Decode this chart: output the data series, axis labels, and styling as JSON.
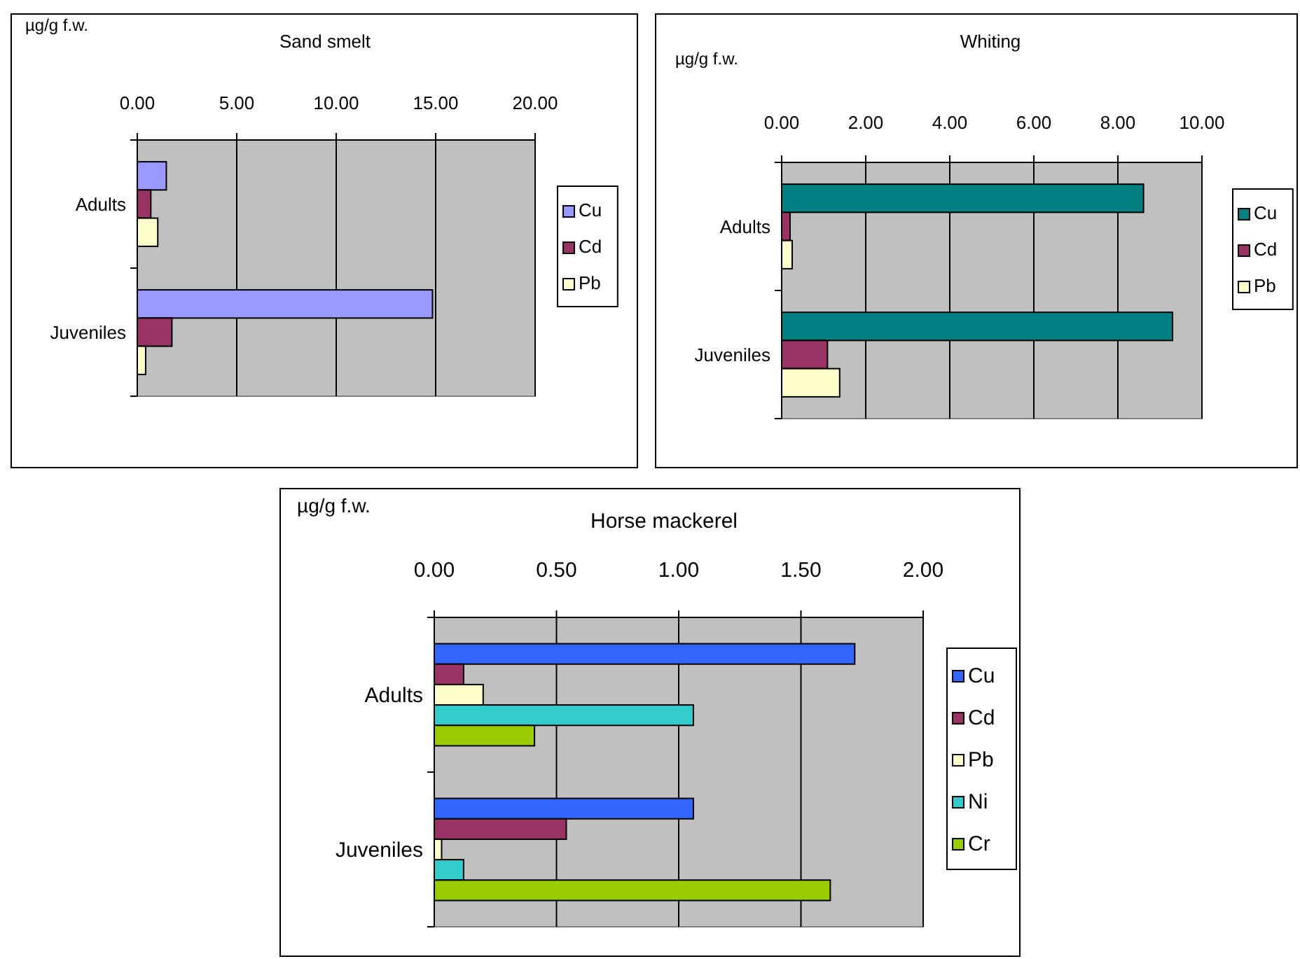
{
  "chart_data": [
    {
      "type": "bar",
      "orientation": "horizontal",
      "title": "Sand smelt",
      "xlabel": "µg/g f.w.",
      "categories": [
        "Adults",
        "Juveniles"
      ],
      "xlim": [
        0,
        20
      ],
      "xticks": [
        {
          "value": 0,
          "label": "0.00"
        },
        {
          "value": 5,
          "label": "5.00"
        },
        {
          "value": 10,
          "label": "10.00"
        },
        {
          "value": 15,
          "label": "15.00"
        },
        {
          "value": 20,
          "label": "20.00"
        }
      ],
      "grid": "x",
      "legend": "right",
      "series": [
        {
          "name": "Cu",
          "color": "#9999ff",
          "values": [
            1.46,
            14.84
          ]
        },
        {
          "name": "Cd",
          "color": "#993366",
          "values": [
            0.68,
            1.74
          ]
        },
        {
          "name": "Pb",
          "color": "#ffffcc",
          "values": [
            1.03,
            0.42
          ]
        }
      ]
    },
    {
      "type": "bar",
      "orientation": "horizontal",
      "title": "Whiting",
      "xlabel": "µg/g f.w.",
      "categories": [
        "Adults",
        "Juveniles"
      ],
      "xlim": [
        0,
        10
      ],
      "xticks": [
        {
          "value": 0,
          "label": "0.00"
        },
        {
          "value": 2,
          "label": "2.00"
        },
        {
          "value": 4,
          "label": "4.00"
        },
        {
          "value": 6,
          "label": "6.00"
        },
        {
          "value": 8,
          "label": "8.00"
        },
        {
          "value": 10,
          "label": "10.00"
        }
      ],
      "grid": "x",
      "legend": "right",
      "series": [
        {
          "name": "Cu",
          "color": "#008080",
          "values": [
            8.61,
            9.3
          ]
        },
        {
          "name": "Cd",
          "color": "#993366",
          "values": [
            0.2,
            1.09
          ]
        },
        {
          "name": "Pb",
          "color": "#ffffcc",
          "values": [
            0.25,
            1.38
          ]
        }
      ]
    },
    {
      "type": "bar",
      "orientation": "horizontal",
      "title": "Horse mackerel",
      "xlabel": "µg/g f.w.",
      "categories": [
        "Adults",
        "Juveniles"
      ],
      "xlim": [
        0,
        2
      ],
      "xticks": [
        {
          "value": 0,
          "label": "0.00"
        },
        {
          "value": 0.5,
          "label": "0.50"
        },
        {
          "value": 1,
          "label": "1.00"
        },
        {
          "value": 1.5,
          "label": "1.50"
        },
        {
          "value": 2,
          "label": "2.00"
        }
      ],
      "grid": "x",
      "legend": "right",
      "series": [
        {
          "name": "Cu",
          "color": "#3366ff",
          "values": [
            1.72,
            1.06
          ]
        },
        {
          "name": "Cd",
          "color": "#993366",
          "values": [
            0.12,
            0.54
          ]
        },
        {
          "name": "Pb",
          "color": "#ffffcc",
          "values": [
            0.2,
            0.03
          ]
        },
        {
          "name": "Ni",
          "color": "#33cccc",
          "values": [
            1.06,
            0.12
          ]
        },
        {
          "name": "Cr",
          "color": "#99cc00",
          "values": [
            0.41,
            1.62
          ]
        }
      ]
    }
  ]
}
